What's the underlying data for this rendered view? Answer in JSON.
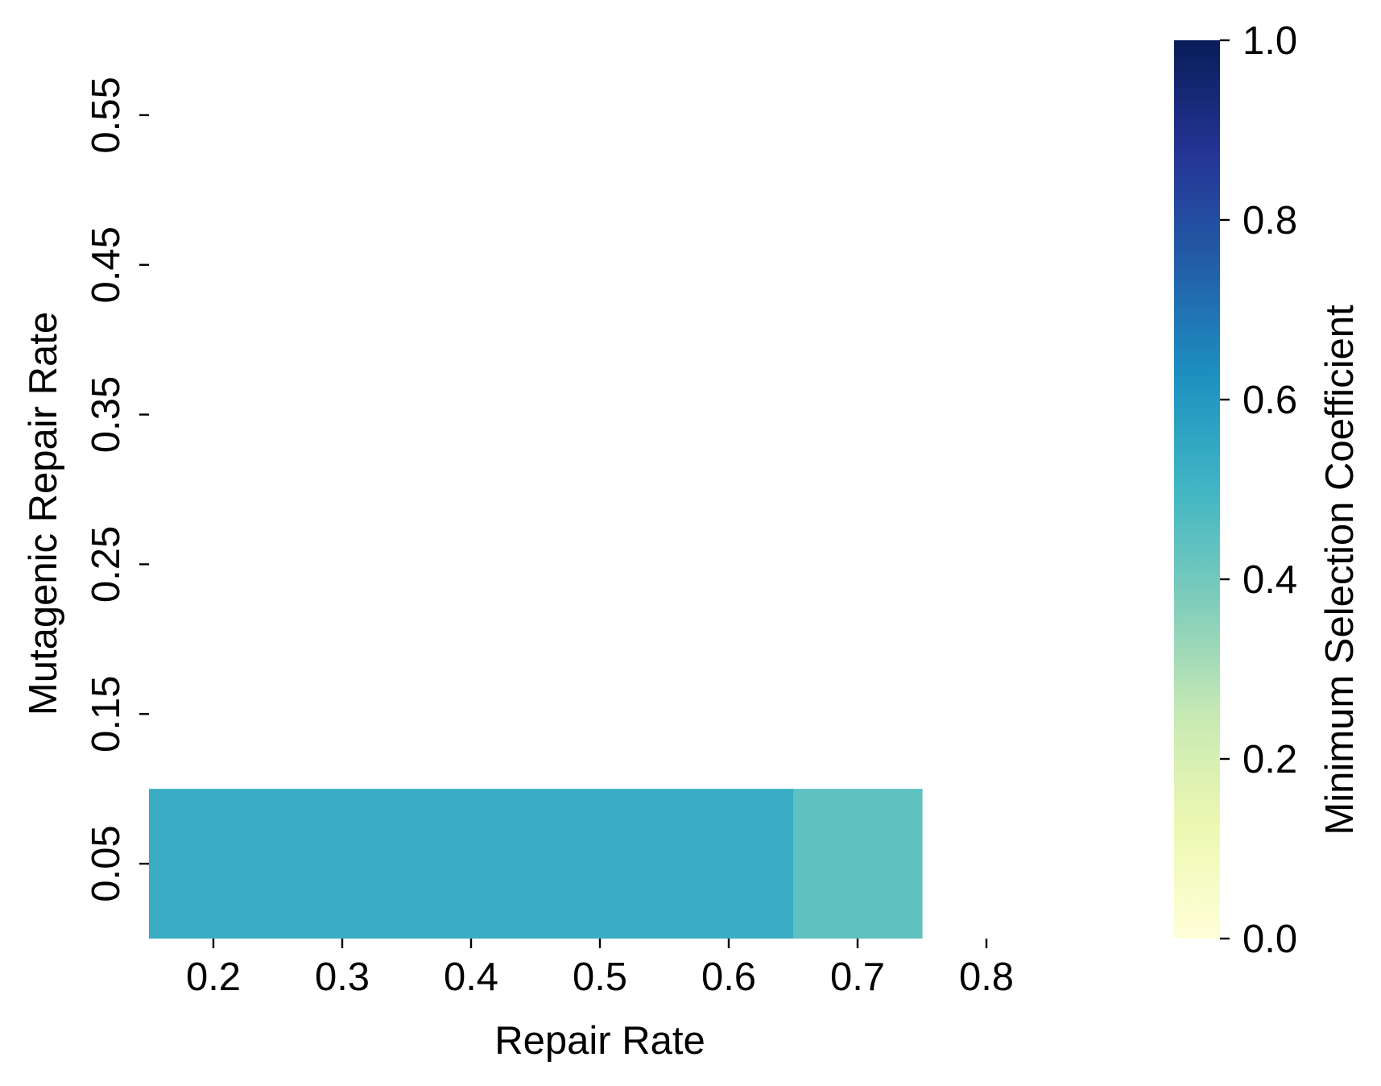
{
  "chart_data": {
    "type": "heatmap",
    "title": "",
    "xlabel": "Repair Rate",
    "ylabel": "Mutagenic Repair Rate",
    "x_ticks": [
      "0.2",
      "0.3",
      "0.4",
      "0.5",
      "0.6",
      "0.7",
      "0.8"
    ],
    "y_ticks": [
      "0.05",
      "0.15",
      "0.25",
      "0.35",
      "0.45",
      "0.55"
    ],
    "xlim": [
      0.15,
      0.85
    ],
    "ylim": [
      0.0,
      0.6
    ],
    "x": [
      0.2,
      0.3,
      0.4,
      0.5,
      0.6,
      0.7,
      0.8
    ],
    "y": [
      0.05,
      0.15,
      0.25,
      0.35,
      0.45,
      0.55
    ],
    "values": [
      [
        0.53,
        0.53,
        0.53,
        0.53,
        0.53,
        0.44,
        null
      ],
      [
        null,
        null,
        null,
        null,
        null,
        null,
        null
      ],
      [
        null,
        null,
        null,
        null,
        null,
        null,
        null
      ],
      [
        null,
        null,
        null,
        null,
        null,
        null,
        null
      ],
      [
        null,
        null,
        null,
        null,
        null,
        null,
        null
      ],
      [
        null,
        null,
        null,
        null,
        null,
        null,
        null
      ]
    ],
    "colorbar": {
      "label": "Minimum Selection Coefficient",
      "range": [
        0.0,
        1.0
      ],
      "ticks": [
        "0.0",
        "0.2",
        "0.4",
        "0.6",
        "0.8",
        "1.0"
      ],
      "colormap": "YlGnBu",
      "stops": [
        "#ffffd9",
        "#edf8b1",
        "#c7e9b4",
        "#7fcdbb",
        "#41b6c4",
        "#1d91c0",
        "#225ea8",
        "#253494",
        "#081d58"
      ]
    },
    "grid": false,
    "legend": "none"
  }
}
